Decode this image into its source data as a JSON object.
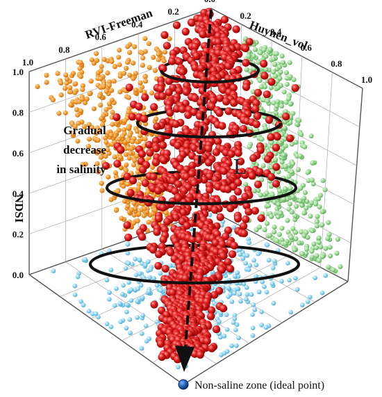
{
  "chart_data": {
    "type": "scatter",
    "projection": "3d",
    "axes": {
      "x": {
        "label": "RVI-Freeman",
        "range": [
          0.0,
          1.0
        ],
        "ticks": [
          "0.0",
          "0.2",
          "0.4",
          "0.6",
          "0.8",
          "1.0"
        ]
      },
      "y": {
        "label": "Huynen_vol",
        "range": [
          0.0,
          1.0
        ],
        "ticks": [
          "0.0",
          "0.2",
          "0.4",
          "0.6",
          "0.8",
          "1.0"
        ]
      },
      "z": {
        "label": "NDSI",
        "range": [
          0.0,
          1.0
        ],
        "ticks": [
          "0.0",
          "0.2",
          "0.4",
          "0.6",
          "0.8",
          "1.0"
        ]
      }
    },
    "grid": true,
    "series": [
      {
        "color": "#f39a2e",
        "description_plane": "RVI-Freeman / NDSI projection",
        "point_count": 520
      },
      {
        "color": "#8fd08a",
        "description_plane": "Huynen_vol / NDSI projection",
        "point_count": 520
      },
      {
        "color": "#8fd3ef",
        "description_plane": "RVI-Freeman / Huynen_vol projection",
        "point_count": 420
      },
      {
        "color": "#d81e1e",
        "description_plane": "3D samples",
        "point_count": 1150
      }
    ],
    "annotations": {
      "trend_text": [
        "Gradual",
        "decrease",
        "in salinity"
      ],
      "cone_label": "L",
      "ideal_point": "Non-saline zone (ideal point)"
    }
  },
  "colors": {
    "orange": "#f39a2e",
    "green": "#8fd08a",
    "blue": "#8fd3ef",
    "red": "#d81e1e",
    "ideal": "#1f5fae"
  }
}
